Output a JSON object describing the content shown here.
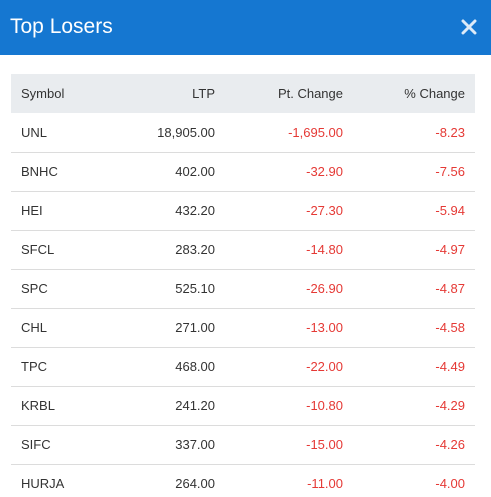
{
  "header": {
    "title": "Top Losers",
    "close_icon": "close-icon",
    "bg_color": "#1577d1"
  },
  "table": {
    "columns": [
      "Symbol",
      "LTP",
      "Pt. Change",
      "% Change"
    ],
    "rows": [
      {
        "symbol": "UNL",
        "ltp": "18,905.00",
        "pt_change": "-1,695.00",
        "pct_change": "-8.23"
      },
      {
        "symbol": "BNHC",
        "ltp": "402.00",
        "pt_change": "-32.90",
        "pct_change": "-7.56"
      },
      {
        "symbol": "HEI",
        "ltp": "432.20",
        "pt_change": "-27.30",
        "pct_change": "-5.94"
      },
      {
        "symbol": "SFCL",
        "ltp": "283.20",
        "pt_change": "-14.80",
        "pct_change": "-4.97"
      },
      {
        "symbol": "SPC",
        "ltp": "525.10",
        "pt_change": "-26.90",
        "pct_change": "-4.87"
      },
      {
        "symbol": "CHL",
        "ltp": "271.00",
        "pt_change": "-13.00",
        "pct_change": "-4.58"
      },
      {
        "symbol": "TPC",
        "ltp": "468.00",
        "pt_change": "-22.00",
        "pct_change": "-4.49"
      },
      {
        "symbol": "KRBL",
        "ltp": "241.20",
        "pt_change": "-10.80",
        "pct_change": "-4.29"
      },
      {
        "symbol": "SIFC",
        "ltp": "337.00",
        "pt_change": "-15.00",
        "pct_change": "-4.26"
      },
      {
        "symbol": "HURJA",
        "ltp": "264.00",
        "pt_change": "-11.00",
        "pct_change": "-4.00"
      }
    ],
    "negative_color": "#e53935"
  }
}
